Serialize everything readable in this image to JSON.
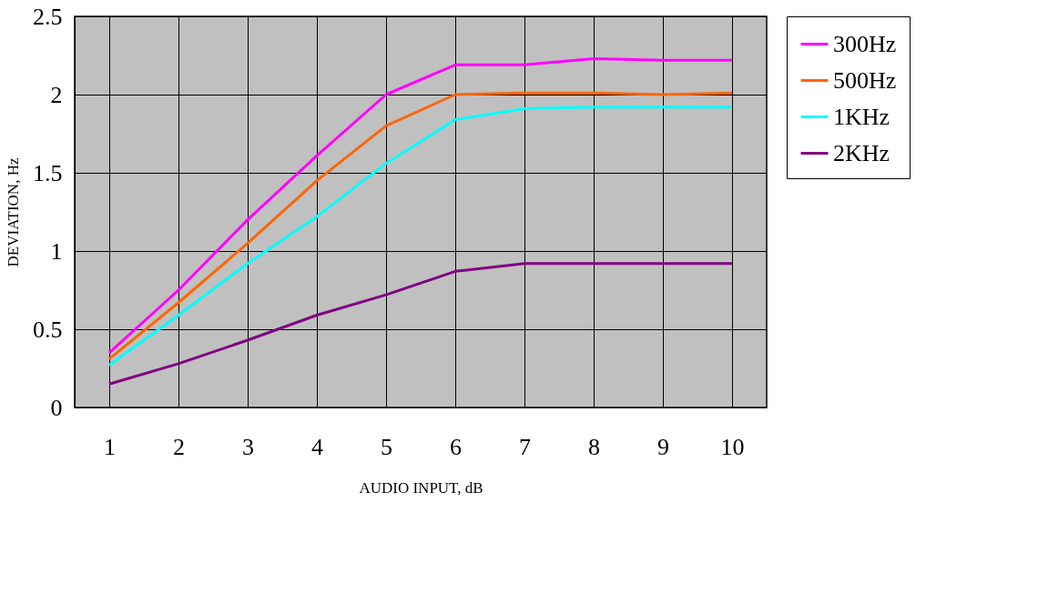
{
  "chart_data": {
    "type": "line",
    "xlabel": "AUDIO INPUT, dB",
    "ylabel": "DEVIATION, Hz",
    "categories": [
      "1",
      "2",
      "3",
      "4",
      "5",
      "6",
      "7",
      "8",
      "9",
      "10"
    ],
    "series": [
      {
        "name": "300Hz",
        "color": "#ff00ff",
        "values": [
          0.35,
          0.75,
          1.2,
          1.61,
          2.0,
          2.19,
          2.19,
          2.23,
          2.22,
          2.22
        ]
      },
      {
        "name": "500Hz",
        "color": "#ff6600",
        "values": [
          0.31,
          0.67,
          1.05,
          1.45,
          1.8,
          2.0,
          2.01,
          2.01,
          2.0,
          2.01
        ]
      },
      {
        "name": "1KHz",
        "color": "#00ffff",
        "values": [
          0.27,
          0.59,
          0.92,
          1.22,
          1.56,
          1.84,
          1.91,
          1.92,
          1.92,
          1.92
        ]
      },
      {
        "name": "2KHz",
        "color": "#800080",
        "values": [
          0.15,
          0.28,
          0.43,
          0.59,
          0.72,
          0.87,
          0.92,
          0.92,
          0.92,
          0.92
        ]
      }
    ],
    "ylim": [
      0,
      2.5
    ],
    "yticks": [
      0,
      0.5,
      1,
      1.5,
      2,
      2.5
    ],
    "grid": true,
    "legend": "right",
    "marker": "none",
    "line_style": "solid"
  }
}
